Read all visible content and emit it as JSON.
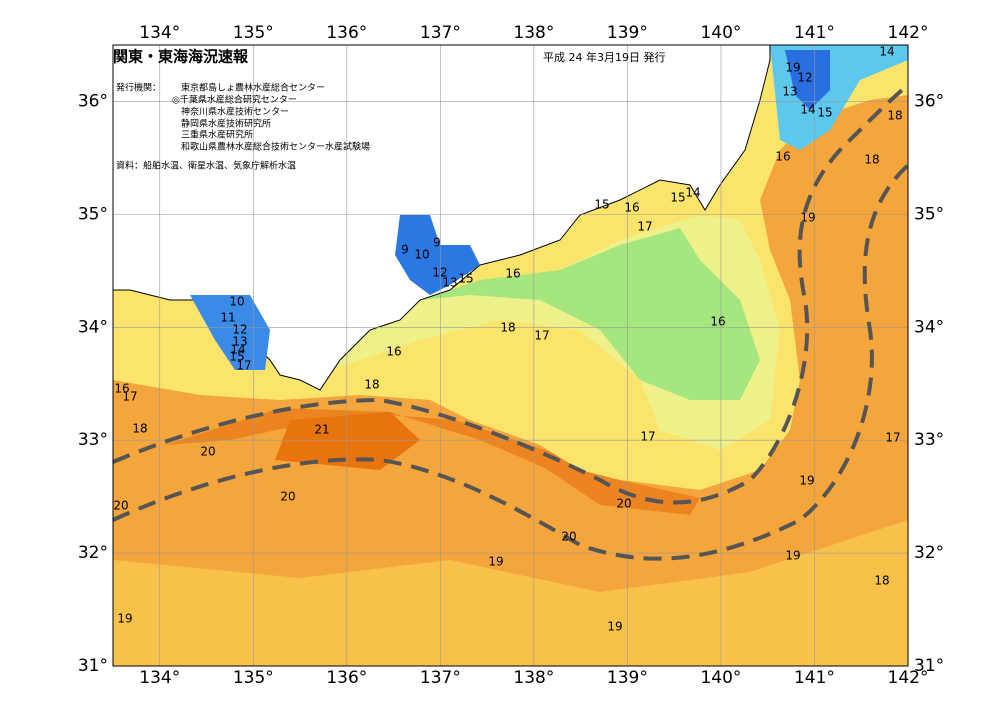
{
  "header": {
    "title": "関東・東海海況速報",
    "issued": "平成 24 年3月19日 発行"
  },
  "agencies": {
    "label": "発行機関：",
    "list": [
      "東京都島しょ農林水産総合センター",
      "◎千葉県水産総合研究センター",
      "神奈川県水産技術センター",
      "静岡県水産技術研究所",
      "三重県水産研究所",
      "和歌山県農林水産総合技術センター水産試験場"
    ]
  },
  "source": "資料：船舶水温、衛星水温、気象庁解析水温",
  "map": {
    "lon_range": [
      133.5,
      142
    ],
    "lat_range": [
      31,
      36.5
    ],
    "lon_ticks": [
      {
        "value": 134,
        "label": "134°"
      },
      {
        "value": 135,
        "label": "135°"
      },
      {
        "value": 136,
        "label": "136°"
      },
      {
        "value": 137,
        "label": "137°"
      },
      {
        "value": 138,
        "label": "138°"
      },
      {
        "value": 139,
        "label": "139°"
      },
      {
        "value": 140,
        "label": "140°"
      },
      {
        "value": 141,
        "label": "141°"
      },
      {
        "value": 142,
        "label": "142°"
      }
    ],
    "lat_ticks": [
      {
        "value": 31,
        "label": "31°"
      },
      {
        "value": 32,
        "label": "32°"
      },
      {
        "value": 33,
        "label": "33°"
      },
      {
        "value": 34,
        "label": "34°"
      },
      {
        "value": 35,
        "label": "35°"
      },
      {
        "value": 36,
        "label": "36°"
      }
    ],
    "contour_labels": [
      14,
      19,
      12,
      13,
      14,
      15,
      18,
      18,
      16,
      19,
      15,
      16,
      17,
      15,
      14,
      9,
      9,
      10,
      12,
      13,
      15,
      16,
      10,
      11,
      12,
      13,
      14,
      15,
      17,
      16,
      18,
      17,
      16,
      18,
      16,
      17,
      18,
      21,
      20,
      17,
      17,
      20,
      20,
      20,
      20,
      19,
      19,
      19,
      18,
      19,
      19
    ]
  }
}
